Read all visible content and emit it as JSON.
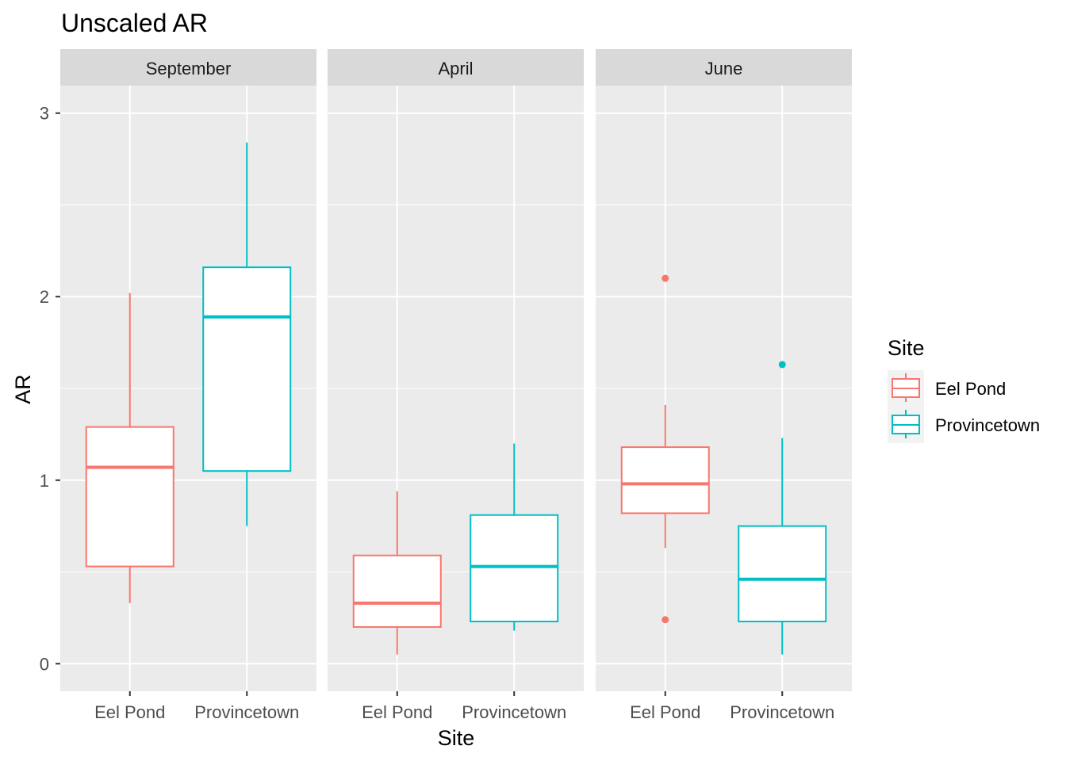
{
  "chart_data": {
    "type": "boxplot",
    "title": "Unscaled AR",
    "xlabel": "Site",
    "ylabel": "AR",
    "ylim": [
      -0.15,
      3.15
    ],
    "y_ticks": [
      0,
      1,
      2,
      3
    ],
    "categories": [
      "Eel Pond",
      "Provincetown"
    ],
    "legend": {
      "title": "Site",
      "position": "right",
      "entries": [
        {
          "label": "Eel Pond",
          "color": "#F8766D"
        },
        {
          "label": "Provincetown",
          "color": "#00BFC4"
        }
      ]
    },
    "grid": true,
    "panels": [
      {
        "name": "September",
        "boxes": [
          {
            "site": "Eel Pond",
            "min": 0.33,
            "q1": 0.53,
            "median": 1.07,
            "q3": 1.29,
            "max": 2.02,
            "outliers": []
          },
          {
            "site": "Provincetown",
            "min": 0.75,
            "q1": 1.05,
            "median": 1.89,
            "q3": 2.16,
            "max": 2.84,
            "outliers": []
          }
        ]
      },
      {
        "name": "April",
        "boxes": [
          {
            "site": "Eel Pond",
            "min": 0.05,
            "q1": 0.2,
            "median": 0.33,
            "q3": 0.59,
            "max": 0.94,
            "outliers": []
          },
          {
            "site": "Provincetown",
            "min": 0.18,
            "q1": 0.23,
            "median": 0.53,
            "q3": 0.81,
            "max": 1.2,
            "outliers": []
          }
        ]
      },
      {
        "name": "June",
        "boxes": [
          {
            "site": "Eel Pond",
            "min": 0.63,
            "q1": 0.82,
            "median": 0.98,
            "q3": 1.18,
            "max": 1.41,
            "outliers": [
              2.1,
              0.24
            ]
          },
          {
            "site": "Provincetown",
            "min": 0.05,
            "q1": 0.23,
            "median": 0.46,
            "q3": 0.75,
            "max": 1.23,
            "outliers": [
              1.63
            ]
          }
        ]
      }
    ]
  }
}
